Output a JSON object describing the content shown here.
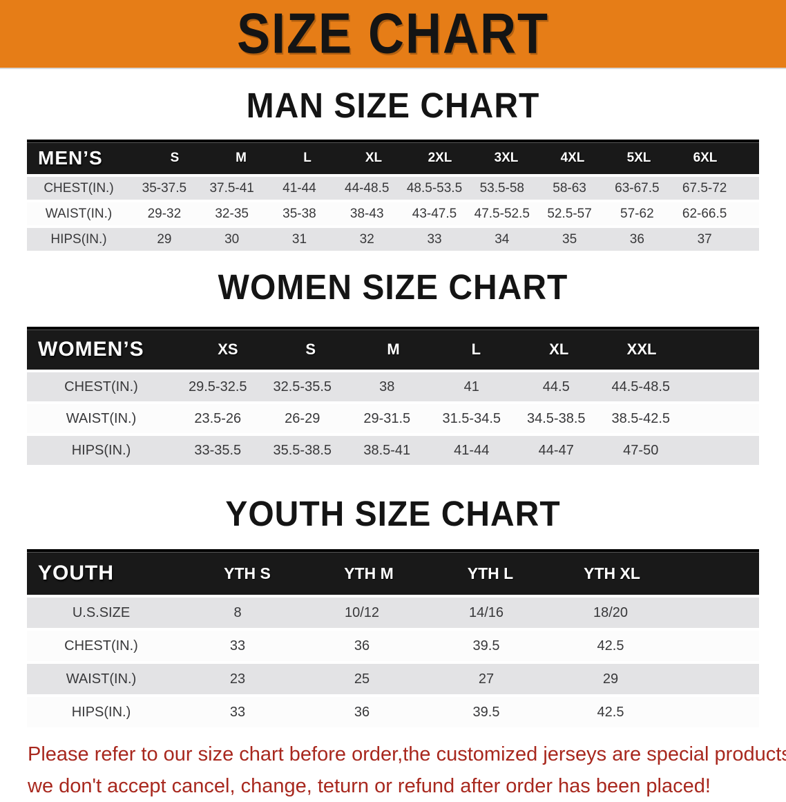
{
  "banner": {
    "title": "SIZE CHART",
    "bg_color": "#E67D17"
  },
  "sections": [
    {
      "heading": "MAN SIZE CHART",
      "table": {
        "label": "MEN’S",
        "columns": [
          "S",
          "M",
          "L",
          "XL",
          "2XL",
          "3XL",
          "4XL",
          "5XL",
          "6XL"
        ],
        "rows": [
          {
            "label": "CHEST(IN.)",
            "values": [
              "35-37.5",
              "37.5-41",
              "41-44",
              "44-48.5",
              "48.5-53.5",
              "53.5-58",
              "58-63",
              "63-67.5",
              "67.5-72"
            ]
          },
          {
            "label": "WAIST(IN.)",
            "values": [
              "29-32",
              "32-35",
              "35-38",
              "38-43",
              "43-47.5",
              "47.5-52.5",
              "52.5-57",
              "57-62",
              "62-66.5"
            ]
          },
          {
            "label": "HIPS(IN.)",
            "values": [
              "29",
              "30",
              "31",
              "32",
              "33",
              "34",
              "35",
              "36",
              "37"
            ]
          }
        ]
      }
    },
    {
      "heading": "WOMEN SIZE CHART",
      "table": {
        "label": "WOMEN’S",
        "columns": [
          "XS",
          "S",
          "M",
          "L",
          "XL",
          "XXL"
        ],
        "rows": [
          {
            "label": "CHEST(IN.)",
            "values": [
              "29.5-32.5",
              "32.5-35.5",
              "38",
              "41",
              "44.5",
              "44.5-48.5"
            ]
          },
          {
            "label": "WAIST(IN.)",
            "values": [
              "23.5-26",
              "26-29",
              "29-31.5",
              "31.5-34.5",
              "34.5-38.5",
              "38.5-42.5"
            ]
          },
          {
            "label": "HIPS(IN.)",
            "values": [
              "33-35.5",
              "35.5-38.5",
              "38.5-41",
              "41-44",
              "44-47",
              "47-50"
            ]
          }
        ]
      }
    },
    {
      "heading": "YOUTH SIZE CHART",
      "table": {
        "label": "YOUTH",
        "columns": [
          "YTH S",
          "YTH M",
          "YTH L",
          "YTH XL"
        ],
        "rows": [
          {
            "label": "U.S.SIZE",
            "values": [
              "8",
              "10/12",
              "14/16",
              "18/20"
            ]
          },
          {
            "label": "CHEST(IN.)",
            "values": [
              "33",
              "36",
              "39.5",
              "42.5"
            ]
          },
          {
            "label": "WAIST(IN.)",
            "values": [
              "23",
              "25",
              "27",
              "29"
            ]
          },
          {
            "label": "HIPS(IN.)",
            "values": [
              "33",
              "36",
              "39.5",
              "42.5"
            ]
          }
        ]
      }
    }
  ],
  "disclaimer": {
    "line1": "Please refer to our size chart before order,the customized jerseys are special products,",
    "line2": "we don't accept cancel, change, teturn or refund after order has been placed!",
    "color": "#A8281E"
  }
}
